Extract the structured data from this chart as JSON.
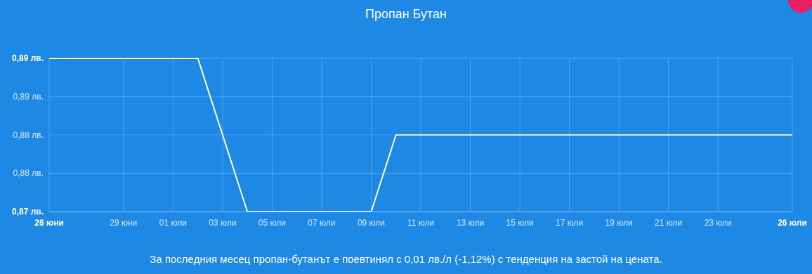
{
  "chart_data": {
    "type": "line",
    "title": "Пропан Бутан",
    "x": [
      "--06-26",
      "--07-02",
      "--07-04",
      "--07-09",
      "--07-10",
      "--07-26"
    ],
    "series": [
      {
        "color": "#ffffff",
        "values": [
          0.89,
          0.89,
          0.87,
          0.87,
          0.88,
          0.88
        ]
      }
    ],
    "xlim": [
      "--06-26",
      "--07-26"
    ],
    "xticks": [
      {
        "value": "--06-26",
        "label": "26 юни"
      },
      {
        "value": "--06-29",
        "label": "29 юни"
      },
      {
        "value": "--07-01",
        "label": "01 юли"
      },
      {
        "value": "--07-03",
        "label": "03 юли"
      },
      {
        "value": "--07-05",
        "label": "05 юли"
      },
      {
        "value": "--07-07",
        "label": "07 юли"
      },
      {
        "value": "--07-09",
        "label": "09 юли"
      },
      {
        "value": "--07-11",
        "label": "11 юли"
      },
      {
        "value": "--07-13",
        "label": "13 юли"
      },
      {
        "value": "--07-15",
        "label": "15 юли"
      },
      {
        "value": "--07-17",
        "label": "17 юли"
      },
      {
        "value": "--07-19",
        "label": "19 юли"
      },
      {
        "value": "--07-21",
        "label": "21 юли"
      },
      {
        "value": "--07-23",
        "label": "23 юли"
      },
      {
        "value": "--07-26",
        "label": "26 юли"
      }
    ],
    "ylim": [
      0.87,
      0.89
    ],
    "yticks": [
      {
        "value": 0.87,
        "label": "0,87 лв."
      },
      {
        "value": 0.875,
        "label": "0,88 лв."
      },
      {
        "value": 0.88,
        "label": "0,88 лв."
      },
      {
        "value": 0.885,
        "label": "0,89 лв."
      },
      {
        "value": 0.89,
        "label": "0,89 лв."
      }
    ],
    "grid": true,
    "legend": false,
    "marker": "none",
    "line_style": "solid",
    "annotations": [
      "За последния месец пропан-бутанът е поевтинял с 0,01 лв./л (-1,12%) с тенденция на застой на цената."
    ]
  }
}
